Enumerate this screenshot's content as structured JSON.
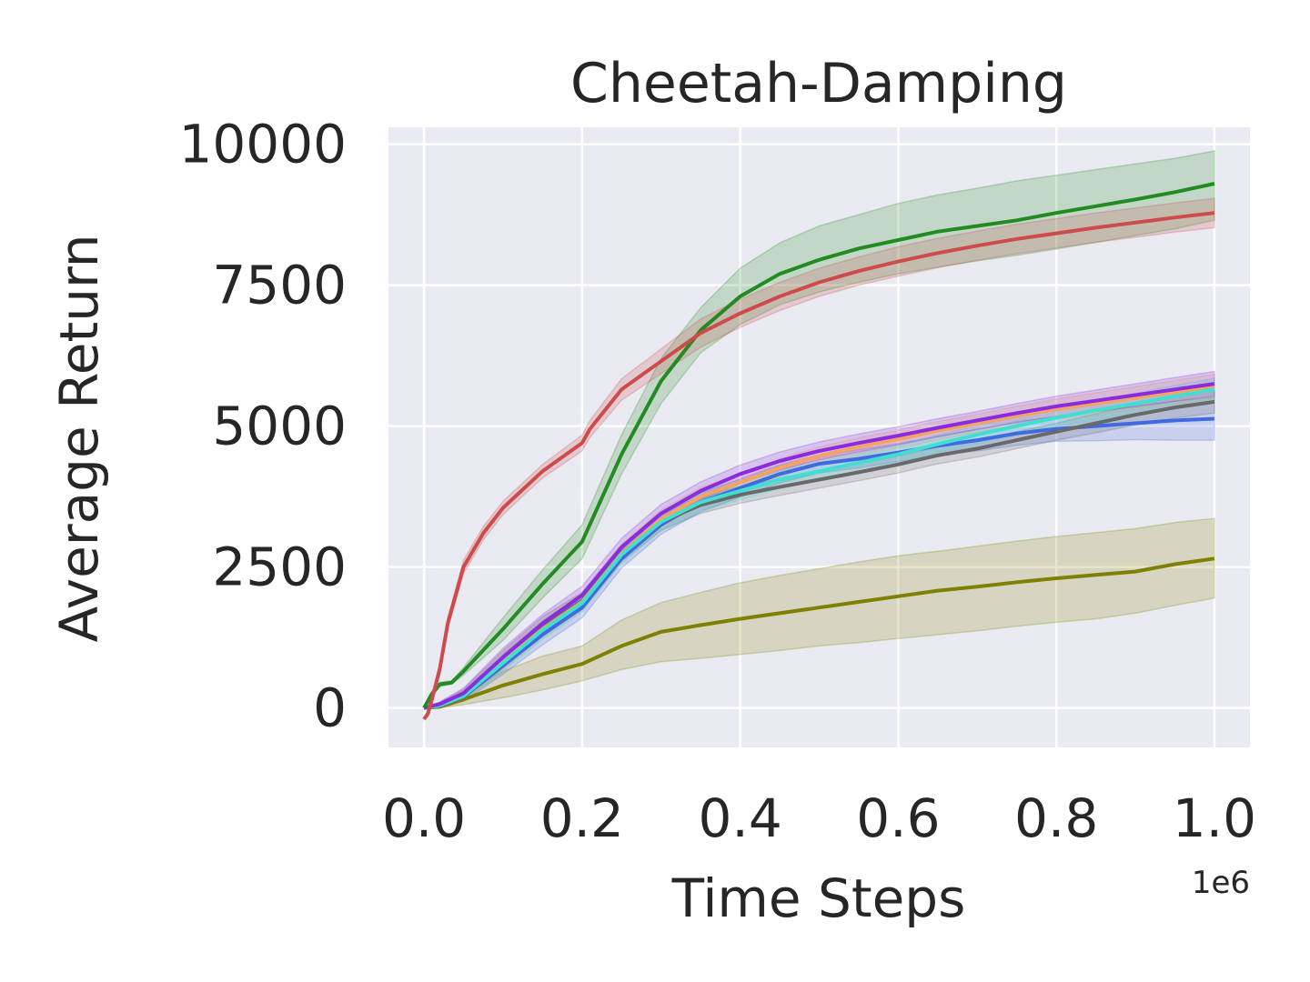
{
  "chart_data": {
    "type": "line",
    "title": "Cheetah-Damping",
    "xlabel": "Time Steps",
    "ylabel": "Average Return",
    "x_offset_label": "1e6",
    "xlim": [
      -0.045,
      1.045
    ],
    "ylim": [
      -700,
      10300
    ],
    "xticks": [
      0.0,
      0.2,
      0.4,
      0.6,
      0.8,
      1.0
    ],
    "xtick_labels": [
      "0.0",
      "0.2",
      "0.4",
      "0.6",
      "0.8",
      "1.0"
    ],
    "yticks": [
      0,
      2500,
      5000,
      7500,
      10000
    ],
    "ytick_labels": [
      "0",
      "2500",
      "5000",
      "7500",
      "10000"
    ],
    "grid": true,
    "legend": "none",
    "background": "#eaeaf2",
    "series": [
      {
        "color": "#808000",
        "x": [
          0,
          0.02,
          0.05,
          0.1,
          0.15,
          0.2,
          0.25,
          0.3,
          0.35,
          0.4,
          0.45,
          0.5,
          0.55,
          0.6,
          0.65,
          0.7,
          0.75,
          0.8,
          0.85,
          0.9,
          0.95,
          1.0
        ],
        "y": [
          0,
          20,
          150,
          400,
          600,
          780,
          1100,
          1350,
          1470,
          1580,
          1680,
          1780,
          1880,
          1980,
          2080,
          2150,
          2230,
          2300,
          2360,
          2420,
          2550,
          2650
        ],
        "lower": [
          0,
          0,
          60,
          180,
          320,
          480,
          680,
          820,
          880,
          950,
          1020,
          1100,
          1160,
          1230,
          1300,
          1370,
          1450,
          1520,
          1580,
          1680,
          1820,
          1950
        ],
        "upper": [
          0,
          50,
          260,
          650,
          920,
          1100,
          1560,
          1870,
          2050,
          2220,
          2350,
          2470,
          2590,
          2700,
          2780,
          2870,
          2960,
          3040,
          3110,
          3180,
          3290,
          3360
        ]
      },
      {
        "color": "#4169e1",
        "x": [
          0,
          0.02,
          0.05,
          0.1,
          0.15,
          0.2,
          0.25,
          0.3,
          0.35,
          0.4,
          0.45,
          0.5,
          0.55,
          0.6,
          0.65,
          0.7,
          0.75,
          0.8,
          0.85,
          0.9,
          0.95,
          1.0
        ],
        "y": [
          0,
          40,
          200,
          750,
          1300,
          1780,
          2650,
          3250,
          3650,
          3900,
          4150,
          4330,
          4420,
          4530,
          4650,
          4750,
          4870,
          4950,
          5000,
          5050,
          5100,
          5130
        ],
        "lower": [
          0,
          0,
          120,
          600,
          1120,
          1600,
          2480,
          3080,
          3480,
          3740,
          3990,
          4170,
          4260,
          4370,
          4480,
          4560,
          4660,
          4730,
          4740,
          4760,
          4750,
          4750
        ],
        "upper": [
          0,
          80,
          300,
          900,
          1480,
          1960,
          2820,
          3420,
          3820,
          4060,
          4310,
          4490,
          4580,
          4690,
          4820,
          4940,
          5080,
          5170,
          5260,
          5340,
          5440,
          5510
        ]
      },
      {
        "color": "#696969",
        "x": [
          0,
          0.02,
          0.05,
          0.1,
          0.15,
          0.2,
          0.25,
          0.3,
          0.35,
          0.4,
          0.45,
          0.5,
          0.55,
          0.6,
          0.65,
          0.7,
          0.75,
          0.8,
          0.85,
          0.9,
          0.95,
          1.0
        ],
        "y": [
          0,
          60,
          240,
          860,
          1460,
          1900,
          2750,
          3300,
          3600,
          3780,
          3920,
          4050,
          4180,
          4320,
          4480,
          4600,
          4750,
          4900,
          5050,
          5200,
          5330,
          5430
        ],
        "lower": [
          0,
          20,
          150,
          700,
          1300,
          1750,
          2600,
          3150,
          3450,
          3630,
          3770,
          3900,
          4030,
          4170,
          4330,
          4450,
          4600,
          4750,
          4880,
          5020,
          5140,
          5230
        ],
        "upper": [
          0,
          100,
          330,
          1020,
          1620,
          2050,
          2900,
          3450,
          3750,
          3930,
          4070,
          4200,
          4330,
          4470,
          4630,
          4750,
          4900,
          5050,
          5220,
          5380,
          5520,
          5630
        ]
      },
      {
        "color": "#f4a460",
        "x": [
          0,
          0.02,
          0.05,
          0.1,
          0.15,
          0.2,
          0.25,
          0.3,
          0.35,
          0.4,
          0.45,
          0.5,
          0.55,
          0.6,
          0.65,
          0.7,
          0.75,
          0.8,
          0.85,
          0.9,
          0.95,
          1.0
        ],
        "y": [
          0,
          50,
          220,
          820,
          1400,
          1880,
          2740,
          3350,
          3750,
          4000,
          4260,
          4470,
          4630,
          4770,
          4920,
          5050,
          5180,
          5300,
          5400,
          5500,
          5600,
          5700
        ],
        "lower": [
          0,
          10,
          140,
          670,
          1240,
          1720,
          2580,
          3190,
          3590,
          3840,
          4100,
          4310,
          4470,
          4610,
          4760,
          4890,
          5010,
          5120,
          5210,
          5300,
          5390,
          5480
        ],
        "upper": [
          0,
          90,
          300,
          970,
          1560,
          2040,
          2900,
          3510,
          3910,
          4160,
          4420,
          4630,
          4790,
          4930,
          5080,
          5210,
          5350,
          5480,
          5590,
          5700,
          5810,
          5920
        ]
      },
      {
        "color": "#40e0d0",
        "x": [
          0,
          0.02,
          0.05,
          0.1,
          0.15,
          0.2,
          0.25,
          0.3,
          0.35,
          0.4,
          0.45,
          0.5,
          0.55,
          0.6,
          0.65,
          0.7,
          0.75,
          0.8,
          0.85,
          0.9,
          0.95,
          1.0
        ],
        "y": [
          0,
          45,
          210,
          800,
          1380,
          1860,
          2720,
          3300,
          3650,
          3850,
          4050,
          4200,
          4350,
          4500,
          4680,
          4850,
          5000,
          5150,
          5280,
          5400,
          5530,
          5650
        ],
        "lower": [
          0,
          5,
          130,
          650,
          1220,
          1700,
          2560,
          3140,
          3490,
          3690,
          3890,
          4040,
          4190,
          4340,
          4520,
          4690,
          4840,
          4990,
          5110,
          5220,
          5340,
          5450
        ],
        "upper": [
          0,
          85,
          290,
          950,
          1540,
          2020,
          2880,
          3460,
          3810,
          4010,
          4210,
          4360,
          4510,
          4660,
          4840,
          5010,
          5160,
          5310,
          5450,
          5580,
          5720,
          5850
        ]
      },
      {
        "color": "#8a2be2",
        "x": [
          0,
          0.02,
          0.05,
          0.1,
          0.15,
          0.2,
          0.25,
          0.3,
          0.35,
          0.4,
          0.45,
          0.5,
          0.55,
          0.6,
          0.65,
          0.7,
          0.75,
          0.8,
          0.85,
          0.9,
          0.95,
          1.0
        ],
        "y": [
          0,
          70,
          260,
          900,
          1500,
          2000,
          2850,
          3450,
          3850,
          4150,
          4380,
          4560,
          4700,
          4830,
          4970,
          5100,
          5230,
          5350,
          5450,
          5550,
          5650,
          5750
        ],
        "lower": [
          0,
          30,
          170,
          740,
          1340,
          1840,
          2690,
          3290,
          3690,
          3990,
          4220,
          4400,
          4540,
          4670,
          4810,
          4940,
          5060,
          5170,
          5260,
          5350,
          5440,
          5530
        ],
        "upper": [
          0,
          110,
          350,
          1060,
          1660,
          2160,
          3010,
          3610,
          4010,
          4310,
          4540,
          4720,
          4860,
          4990,
          5130,
          5260,
          5400,
          5530,
          5640,
          5750,
          5860,
          5970
        ]
      },
      {
        "color": "#228b22",
        "x": [
          0,
          0.01,
          0.02,
          0.035,
          0.05,
          0.1,
          0.15,
          0.2,
          0.25,
          0.3,
          0.35,
          0.4,
          0.45,
          0.5,
          0.55,
          0.6,
          0.65,
          0.7,
          0.75,
          0.8,
          0.85,
          0.9,
          0.95,
          1.0
        ],
        "y": [
          0,
          250,
          420,
          450,
          650,
          1400,
          2200,
          2950,
          4500,
          5800,
          6700,
          7300,
          7700,
          7950,
          8150,
          8300,
          8450,
          8550,
          8650,
          8780,
          8900,
          9020,
          9150,
          9300
        ],
        "lower": [
          0,
          200,
          380,
          420,
          580,
          1200,
          1950,
          2650,
          4150,
          5400,
          6300,
          6800,
          7150,
          7380,
          7550,
          7700,
          7820,
          7930,
          8030,
          8140,
          8260,
          8380,
          8500,
          8650
        ],
        "upper": [
          0,
          300,
          460,
          480,
          720,
          1600,
          2450,
          3250,
          4850,
          6200,
          7100,
          7800,
          8250,
          8550,
          8750,
          8950,
          9100,
          9220,
          9350,
          9450,
          9550,
          9650,
          9750,
          9880
        ]
      },
      {
        "color": "#cd4b4b",
        "x": [
          0,
          0.005,
          0.01,
          0.02,
          0.03,
          0.05,
          0.075,
          0.1,
          0.15,
          0.2,
          0.21,
          0.25,
          0.3,
          0.35,
          0.4,
          0.45,
          0.5,
          0.55,
          0.6,
          0.65,
          0.7,
          0.75,
          0.8,
          0.85,
          0.9,
          0.95,
          1.0
        ],
        "y": [
          -200,
          -100,
          150,
          700,
          1500,
          2500,
          3100,
          3550,
          4200,
          4700,
          4950,
          5650,
          6150,
          6650,
          7000,
          7300,
          7550,
          7750,
          7920,
          8070,
          8200,
          8320,
          8420,
          8520,
          8610,
          8700,
          8780
        ],
        "lower": [
          -200,
          -150,
          100,
          600,
          1400,
          2380,
          2980,
          3430,
          4080,
          4560,
          4800,
          5460,
          5930,
          6400,
          6750,
          7050,
          7300,
          7500,
          7660,
          7810,
          7940,
          8060,
          8160,
          8260,
          8350,
          8440,
          8520
        ],
        "upper": [
          -200,
          -50,
          200,
          800,
          1600,
          2620,
          3220,
          3670,
          4320,
          4840,
          5100,
          5840,
          6370,
          6900,
          7250,
          7550,
          7800,
          8000,
          8180,
          8330,
          8460,
          8580,
          8680,
          8780,
          8870,
          8960,
          9040
        ]
      }
    ]
  }
}
